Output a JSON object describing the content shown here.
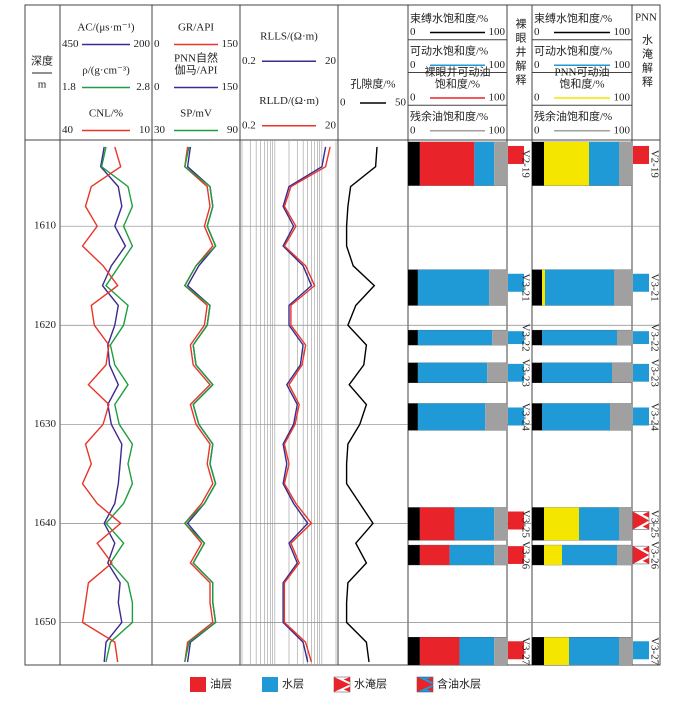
{
  "depth_axis": {
    "label": "深度",
    "unit": "m",
    "lim": [
      1601.3,
      1654.3
    ],
    "ticks": [
      1610,
      1620,
      1630,
      1640,
      1650
    ],
    "depths": [
      1602,
      1604,
      1606,
      1608,
      1610,
      1612,
      1614,
      1616,
      1618,
      1620,
      1622,
      1624,
      1626,
      1628,
      1630,
      1632,
      1634,
      1636,
      1638,
      1640,
      1642,
      1644,
      1646,
      1648,
      1650,
      1652,
      1654
    ]
  },
  "tracks": [
    {
      "log": false,
      "curves": [
        {
          "label": "AC/(μs·m⁻¹)",
          "scale": [
            450,
            200
          ],
          "color": "#3b2a8f",
          "values": [
            330,
            340,
            290,
            280,
            300,
            270,
            310,
            335,
            290,
            300,
            320,
            315,
            290,
            320,
            310,
            280,
            285,
            290,
            300,
            330,
            300,
            320,
            285,
            290,
            280,
            325,
            330
          ]
        },
        {
          "label": "ρ/(g·cm⁻³)",
          "scale": [
            1.8,
            2.8
          ],
          "color": "#1e9e3e",
          "values": [
            2.3,
            2.25,
            2.55,
            2.6,
            2.5,
            2.6,
            2.45,
            2.3,
            2.55,
            2.5,
            2.35,
            2.4,
            2.55,
            2.4,
            2.45,
            2.6,
            2.55,
            2.6,
            2.5,
            2.3,
            2.5,
            2.35,
            2.55,
            2.6,
            2.6,
            2.35,
            2.3
          ]
        },
        {
          "label": "CNL/%",
          "scale": [
            40,
            10
          ],
          "color": "#e8352a",
          "values": [
            22,
            20,
            30,
            32,
            28,
            33,
            26,
            21,
            30,
            29,
            24,
            25,
            31,
            24,
            26,
            32,
            30,
            33,
            28,
            20,
            28,
            23,
            31,
            32,
            33,
            22,
            21
          ]
        }
      ]
    },
    {
      "log": false,
      "curves": [
        {
          "label": "GR/API",
          "scale": [
            0,
            150
          ],
          "color": "#e8352a",
          "values": [
            60,
            55,
            95,
            100,
            90,
            105,
            75,
            55,
            95,
            90,
            65,
            70,
            100,
            65,
            75,
            100,
            95,
            105,
            85,
            55,
            85,
            65,
            100,
            100,
            105,
            60,
            55
          ]
        },
        {
          "label": [
            "PNN自然",
            "伽马/API"
          ],
          "scale": [
            0,
            150
          ],
          "color": "#3b2a8f",
          "values": [
            65,
            60,
            100,
            105,
            95,
            110,
            80,
            60,
            100,
            95,
            70,
            75,
            105,
            70,
            80,
            105,
            100,
            110,
            90,
            60,
            90,
            70,
            105,
            105,
            110,
            65,
            60
          ]
        },
        {
          "label": "SP/mV",
          "scale": [
            30,
            90
          ],
          "color": "#1e9e3e",
          "values": [
            55,
            52,
            70,
            72,
            68,
            74,
            60,
            52,
            70,
            68,
            58,
            60,
            72,
            58,
            62,
            72,
            70,
            74,
            66,
            52,
            66,
            58,
            72,
            72,
            74,
            55,
            52
          ]
        }
      ]
    },
    {
      "log": true,
      "curves": [
        {
          "label": "RLLS/(Ω·m)",
          "scale": [
            0.2,
            20
          ],
          "color": "#3b2a8f",
          "values": [
            12,
            10,
            2,
            1.5,
            2.5,
            1.5,
            4,
            6,
            2,
            2,
            4,
            3.5,
            1.8,
            3,
            2.5,
            1.5,
            1.8,
            1.5,
            2.5,
            5,
            2,
            3,
            1.5,
            1.5,
            1.5,
            4,
            5
          ]
        },
        {
          "label": "RLLD/(Ω·m)",
          "scale": [
            0.2,
            20
          ],
          "color": "#e8352a",
          "values": [
            15,
            12,
            2.2,
            1.6,
            2.8,
            1.6,
            4.5,
            7,
            2.2,
            2.2,
            4.5,
            3.8,
            2,
            3.3,
            2.7,
            1.6,
            2,
            1.6,
            2.8,
            6,
            2.2,
            3.3,
            1.6,
            1.6,
            1.6,
            4.5,
            6
          ]
        }
      ]
    },
    {
      "log": false,
      "curves": [
        {
          "label": "孔隙度/%",
          "scale": [
            0,
            50
          ],
          "color": "#000000",
          "values": [
            28,
            27,
            8,
            6,
            5,
            5,
            10,
            26,
            12,
            6,
            20,
            18,
            7,
            20,
            15,
            6,
            5,
            5,
            15,
            25,
            12,
            20,
            6,
            5,
            5,
            20,
            22
          ]
        }
      ]
    }
  ],
  "saturation_tracks": [
    {
      "items": [
        {
          "label": "束缚水饱和度/%",
          "scale": [
            0,
            100
          ],
          "color": "#000000"
        },
        {
          "label": "可动水饱和度/%",
          "scale": [
            0,
            100
          ],
          "color": "#1f9ad6"
        },
        {
          "label": [
            "裸眼井可动油",
            "饱和度/%"
          ],
          "scale": [
            0,
            100
          ],
          "color": "#e8242a"
        },
        {
          "label": "残余油饱和度/%",
          "scale": [
            0,
            100
          ],
          "color": "#a0a0a0"
        }
      ]
    },
    {
      "items": [
        {
          "label": "束缚水饱和度/%",
          "scale": [
            0,
            100
          ],
          "color": "#000000"
        },
        {
          "label": "可动水饱和度/%",
          "scale": [
            0,
            100
          ],
          "color": "#1f9ad6"
        },
        {
          "label": [
            "PNN可动油",
            "饱和度/%"
          ],
          "scale": [
            0,
            100
          ],
          "color": "#f5e600"
        },
        {
          "label": "残余油饱和度/%",
          "scale": [
            0,
            100
          ],
          "color": "#a0a0a0"
        }
      ]
    }
  ],
  "interpretation_headers": [
    [
      "裸眼井解释"
    ],
    [
      "PNN",
      "水淹解释"
    ]
  ],
  "zones": [
    {
      "name": "V2-19",
      "top": 1601.5,
      "bottom": 1605.9,
      "sat": [
        [
          12,
          20,
          55,
          13
        ],
        [
          12,
          30,
          45,
          13
        ]
      ],
      "interp": [
        "油层",
        "油层"
      ]
    },
    {
      "name": "V3-21",
      "top": 1614.4,
      "bottom": 1618,
      "sat": [
        [
          10,
          72,
          0,
          18
        ],
        [
          10,
          69,
          3,
          18
        ]
      ],
      "interp": [
        "水层",
        "水层"
      ]
    },
    {
      "name": "V3-22",
      "top": 1620.5,
      "bottom": 1622,
      "sat": [
        [
          10,
          75,
          0,
          15
        ],
        [
          10,
          75,
          0,
          15
        ]
      ],
      "interp": [
        "水层",
        "水层"
      ]
    },
    {
      "name": "V3-23",
      "top": 1623.8,
      "bottom": 1625.8,
      "sat": [
        [
          10,
          70,
          0,
          20
        ],
        [
          10,
          70,
          0,
          20
        ]
      ],
      "interp": [
        "水层",
        "水层"
      ]
    },
    {
      "name": "V3-24",
      "top": 1627.9,
      "bottom": 1630.6,
      "sat": [
        [
          10,
          68,
          0,
          22
        ],
        [
          10,
          68,
          0,
          22
        ]
      ],
      "interp": [
        "水层",
        "水层"
      ]
    },
    {
      "name": "V3-25",
      "top": 1638.4,
      "bottom": 1641.7,
      "sat": [
        [
          12,
          40,
          35,
          13
        ],
        [
          12,
          40,
          35,
          13
        ]
      ],
      "interp": [
        "油层",
        "水淹层"
      ]
    },
    {
      "name": "V3-26",
      "top": 1642.2,
      "bottom": 1644.2,
      "sat": [
        [
          12,
          45,
          30,
          13
        ],
        [
          12,
          55,
          18,
          15
        ]
      ],
      "interp": [
        "油层",
        "水淹层"
      ]
    },
    {
      "name": "V3-27",
      "top": 1651.5,
      "bottom": 1654.3,
      "sat": [
        [
          12,
          35,
          40,
          13
        ],
        [
          12,
          50,
          25,
          13
        ]
      ],
      "interp": [
        "油层",
        "水层"
      ]
    }
  ],
  "legend": [
    {
      "label": "油层",
      "color": "#e8242a"
    },
    {
      "label": "水层",
      "color": "#1f9ad6"
    },
    {
      "label": "水淹层",
      "color": [
        "#e8242a",
        "#ffffff"
      ]
    },
    {
      "label": "含油水层",
      "color": [
        "#e8242a",
        "#1f9ad6"
      ]
    }
  ]
}
